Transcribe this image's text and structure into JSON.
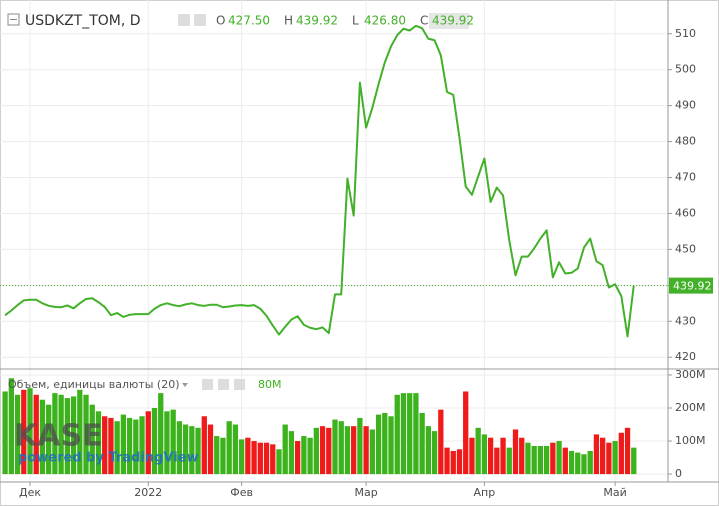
{
  "chart_data": [
    {
      "type": "line",
      "title": "USDKZT_TOM, D",
      "ohlc": [
        {
          "label": "O",
          "value": "427.50"
        },
        {
          "label": "H",
          "value": "439.92"
        },
        {
          "label": "L",
          "value": "426.80"
        },
        {
          "label": "C",
          "value": "439.92"
        }
      ],
      "values": [
        431.7,
        433,
        434.5,
        435.8,
        436,
        436,
        435,
        434.3,
        434,
        433.9,
        434.4,
        433.6,
        435,
        436.2,
        436.4,
        435.3,
        434,
        431.7,
        432.3,
        431.2,
        431.8,
        432,
        432,
        432,
        433.5,
        434.5,
        435,
        434.5,
        434.2,
        434.7,
        435,
        434.5,
        434.3,
        434.6,
        434.6,
        433.9,
        434.1,
        434.4,
        434.5,
        434.3,
        434.5,
        433.5,
        431.5,
        428.8,
        426.3,
        428.5,
        430.5,
        431.4,
        429,
        428.2,
        427.8,
        428.3,
        426.7,
        437.5,
        437.5,
        469.7,
        459.4,
        496.4,
        483.9,
        489.4,
        496,
        502,
        506.5,
        509.6,
        511.4,
        510.9,
        512.2,
        511.5,
        508.6,
        508.2,
        504,
        493.8,
        493,
        481,
        467.5,
        465.2,
        470.3,
        475.3,
        463.2,
        467.2,
        465,
        452.5,
        442.8,
        448,
        448,
        450.3,
        453,
        455.3,
        442.2,
        446.4,
        443.3,
        443.5,
        444.7,
        450.5,
        453,
        446.7,
        445.6,
        439.4,
        440.3,
        437,
        425.8,
        439.92
      ],
      "color": "#43b02a",
      "ylim": [
        417,
        518
      ],
      "yticks": [
        420,
        430,
        440,
        450,
        460,
        470,
        480,
        490,
        500,
        510
      ],
      "grid": true
    },
    {
      "type": "bar",
      "title": "Объем, единицы валюты (20)",
      "last_value": {
        "value": 80,
        "label": "80M"
      },
      "values": [
        250,
        290,
        240,
        255,
        260,
        240,
        225,
        210,
        245,
        240,
        230,
        235,
        255,
        240,
        210,
        190,
        175,
        170,
        160,
        180,
        170,
        165,
        175,
        190,
        200,
        245,
        190,
        195,
        160,
        150,
        145,
        140,
        175,
        150,
        115,
        110,
        160,
        150,
        105,
        110,
        100,
        95,
        95,
        90,
        75,
        150,
        130,
        100,
        115,
        110,
        140,
        145,
        140,
        165,
        160,
        145,
        145,
        170,
        145,
        135,
        180,
        185,
        175,
        240,
        245,
        245,
        245,
        185,
        145,
        130,
        195,
        80,
        70,
        75,
        250,
        110,
        140,
        120,
        110,
        80,
        110,
        80,
        135,
        110,
        95,
        85,
        85,
        85,
        95,
        100,
        80,
        70,
        65,
        60,
        70,
        120,
        110,
        95,
        100,
        125,
        140,
        80
      ],
      "colors": [
        "#3cb21c",
        "#3cb21c",
        "#3cb21c",
        "#ef1b1b",
        "#3cb21c",
        "#ef1b1b",
        "#3cb21c",
        "#3cb21c",
        "#3cb21c",
        "#3cb21c",
        "#3cb21c",
        "#3cb21c",
        "#3cb21c",
        "#3cb21c",
        "#3cb21c",
        "#3cb21c",
        "#ef1b1b",
        "#ef1b1b",
        "#3cb21c",
        "#3cb21c",
        "#3cb21c",
        "#3cb21c",
        "#3cb21c",
        "#ef1b1b",
        "#3cb21c",
        "#3cb21c",
        "#3cb21c",
        "#3cb21c",
        "#3cb21c",
        "#3cb21c",
        "#3cb21c",
        "#3cb21c",
        "#ef1b1b",
        "#ef1b1b",
        "#3cb21c",
        "#3cb21c",
        "#3cb21c",
        "#3cb21c",
        "#3cb21c",
        "#ef1b1b",
        "#ef1b1b",
        "#ef1b1b",
        "#ef1b1b",
        "#ef1b1b",
        "#3cb21c",
        "#3cb21c",
        "#3cb21c",
        "#ef1b1b",
        "#3cb21c",
        "#3cb21c",
        "#3cb21c",
        "#ef1b1b",
        "#ef1b1b",
        "#3cb21c",
        "#3cb21c",
        "#3cb21c",
        "#ef1b1b",
        "#3cb21c",
        "#ef1b1b",
        "#3cb21c",
        "#3cb21c",
        "#3cb21c",
        "#3cb21c",
        "#3cb21c",
        "#3cb21c",
        "#3cb21c",
        "#3cb21c",
        "#3cb21c",
        "#3cb21c",
        "#3cb21c",
        "#ef1b1b",
        "#ef1b1b",
        "#ef1b1b",
        "#ef1b1b",
        "#ef1b1b",
        "#ef1b1b",
        "#3cb21c",
        "#3cb21c",
        "#ef1b1b",
        "#ef1b1b",
        "#ef1b1b",
        "#3cb21c",
        "#ef1b1b",
        "#ef1b1b",
        "#3cb21c",
        "#3cb21c",
        "#3cb21c",
        "#3cb21c",
        "#ef1b1b",
        "#3cb21c",
        "#ef1b1b",
        "#3cb21c",
        "#3cb21c",
        "#3cb21c",
        "#3cb21c",
        "#ef1b1b",
        "#ef1b1b",
        "#ef1b1b",
        "#3cb21c",
        "#ef1b1b",
        "#ef1b1b",
        "#3cb21c"
      ],
      "ylim": [
        -24,
        315
      ],
      "yticks": [
        0,
        {
          "value": 100,
          "label": "100M"
        },
        {
          "value": 200,
          "label": "200M"
        },
        {
          "value": 300,
          "label": "300M"
        }
      ],
      "xlim": [
        -0.5,
        106.5
      ],
      "xticks": [
        {
          "value": 4,
          "label": "Дек"
        },
        {
          "value": 23,
          "label": "2022"
        },
        {
          "value": 38,
          "label": "Фев"
        },
        {
          "value": 58,
          "label": "Мар"
        },
        {
          "value": 77,
          "label": "Апр"
        },
        {
          "value": 98,
          "label": "Май"
        }
      ]
    }
  ],
  "watermark": {
    "logo": "KASE",
    "credit": "powered by TradingView"
  }
}
